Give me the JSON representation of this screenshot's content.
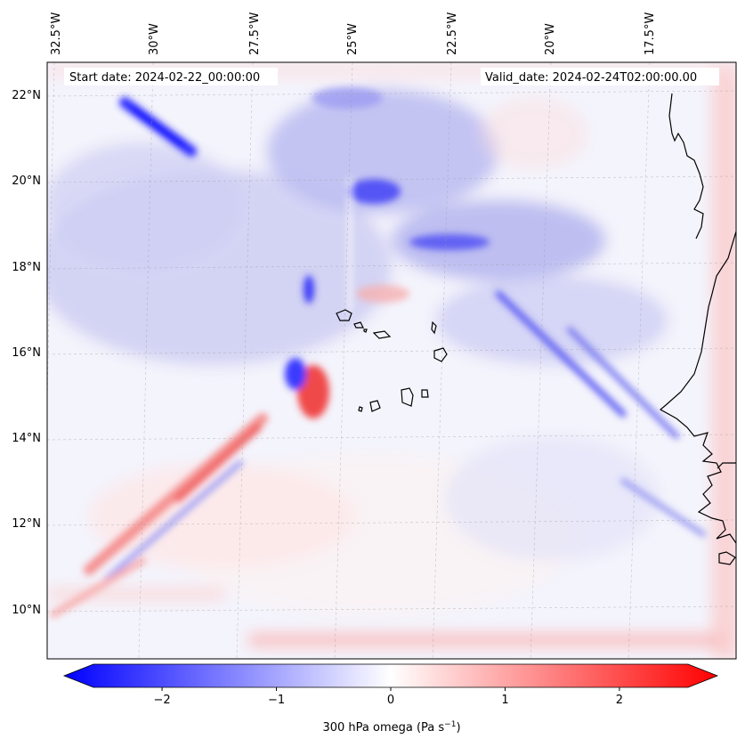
{
  "header": {
    "start_date": "Start date: 2024-02-22_00:00:00",
    "valid_date": "Valid_date: 2024-02-24T02:00:00.00"
  },
  "map": {
    "longitude_labels": [
      "32.5°W",
      "30°W",
      "27.5°W",
      "25°W",
      "22.5°W",
      "20°W",
      "17.5°W"
    ],
    "latitude_labels": [
      "22°N",
      "20°N",
      "18°N",
      "16°N",
      "14°N",
      "12°N",
      "10°N"
    ],
    "coastline": "Senegal / Mauritania coast and Cape Verde islands",
    "field": "300 hPa omega"
  },
  "colorbar": {
    "label_main": "300 hPa omega (Pa s",
    "label_exp": "−1",
    "label_close": ")",
    "ticks": [
      "−2",
      "−1",
      "0",
      "1",
      "2"
    ],
    "tick_values": [
      -2,
      -1,
      0,
      1,
      2
    ],
    "vmin": -2.6,
    "vmax": 2.6,
    "negative_color": "#0000ff",
    "neutral_color": "#ffffff",
    "positive_color": "#ff0000"
  }
}
